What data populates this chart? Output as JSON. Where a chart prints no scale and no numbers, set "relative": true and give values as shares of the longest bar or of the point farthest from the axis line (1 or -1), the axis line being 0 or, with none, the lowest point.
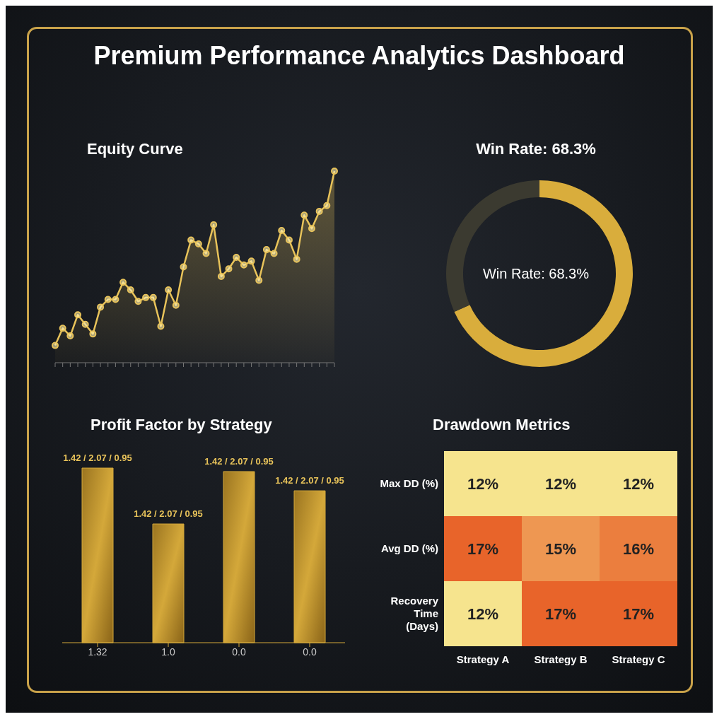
{
  "chart_data": [
    {
      "type": "other",
      "title": "Premium Performance Analytics Dashboard"
    },
    {
      "type": "area",
      "title": "Equity Curve",
      "relative": true,
      "marker": "circle",
      "color": "#e8c35a",
      "categories": [
        null,
        null,
        null,
        null,
        null,
        null,
        null,
        null,
        null,
        null,
        null,
        null,
        null,
        null,
        null,
        null,
        null,
        null,
        null,
        null,
        null,
        null,
        null,
        null,
        null,
        null,
        null,
        null,
        null,
        null,
        null,
        null,
        null,
        null,
        null,
        null,
        null,
        null
      ],
      "values": [
        0.09,
        0.18,
        0.14,
        0.25,
        0.2,
        0.15,
        0.29,
        0.33,
        0.33,
        0.42,
        0.38,
        0.32,
        0.34,
        0.34,
        0.19,
        0.38,
        0.3,
        0.5,
        0.64,
        0.62,
        0.57,
        0.72,
        0.45,
        0.49,
        0.55,
        0.51,
        0.53,
        0.43,
        0.59,
        0.57,
        0.69,
        0.64,
        0.54,
        0.77,
        0.7,
        0.79,
        0.82,
        1.0
      ]
    },
    {
      "type": "donut",
      "title": "Win Rate: 68.3%",
      "categories": [
        null,
        null
      ],
      "values": [
        68.3,
        31.7
      ],
      "colors": [
        "#d9ad3c",
        "#3b3a30"
      ],
      "annotations": [
        "Win Rate: 68.3%"
      ]
    },
    {
      "type": "bar",
      "title": "Profit Factor by Strategy",
      "relative": true,
      "color": "#d4a83a",
      "categories": [
        "1.32",
        "1.0",
        "0.0",
        "0.0"
      ],
      "values": [
        1.0,
        0.68,
        0.98,
        0.87
      ],
      "annotations": [
        "1.42 / 2.07 / 0.95",
        "1.42 / 2.07 / 0.95",
        "1.42 / 2.07 / 0.95",
        "1.42 / 2.07 / 0.95"
      ]
    },
    {
      "type": "heatmap",
      "title": "Drawdown Metrics",
      "categories": [
        "Strategy A",
        "Strategy B",
        "Strategy C"
      ],
      "y_categories": [
        "Max DD (%)",
        "Avg DD (%)",
        "Recovery Time (Days)"
      ],
      "cells": [
        [
          12,
          12,
          12
        ],
        [
          17,
          15,
          16
        ],
        [
          12,
          17,
          17
        ]
      ],
      "cell_labels": [
        [
          "12%",
          "12%",
          "12%"
        ],
        [
          "17%",
          "15%",
          "16%"
        ],
        [
          "12%",
          "17%",
          "17%"
        ]
      ]
    }
  ]
}
